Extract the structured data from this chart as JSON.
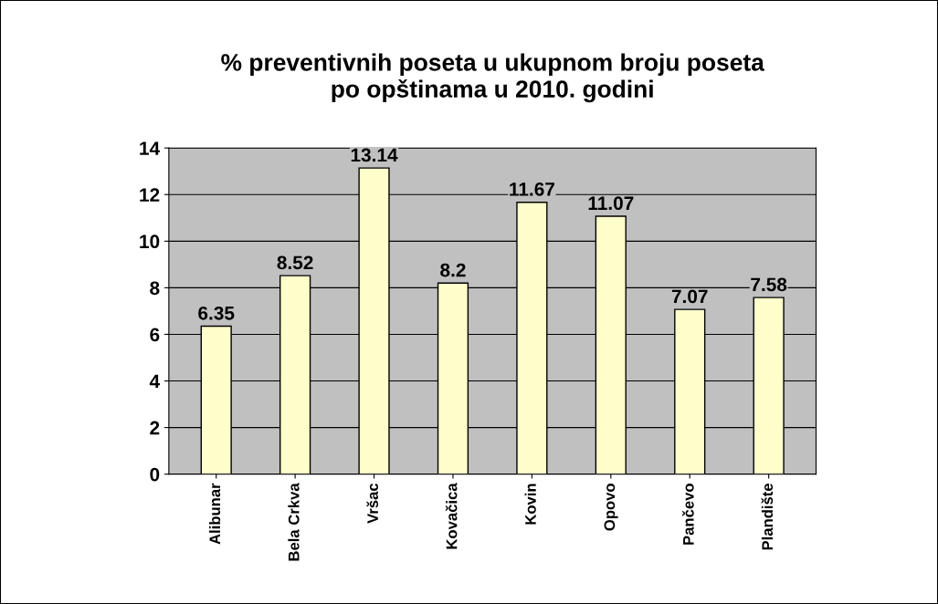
{
  "chart_data": {
    "type": "bar",
    "title": "% preventivnih poseta u ukupnom broju poseta\npo opštinama u 2010. godini",
    "categories": [
      "Alibunar",
      "Bela Crkva",
      "Vršac",
      "Kovačica",
      "Kovin",
      "Opovo",
      "Pančevo",
      "Plandište"
    ],
    "values": [
      6.35,
      8.52,
      13.14,
      8.2,
      11.67,
      11.07,
      7.07,
      7.58
    ],
    "color": "#ffffcc",
    "ylim": [
      0,
      14
    ],
    "yticks": [
      0,
      2,
      4,
      6,
      8,
      10,
      12,
      14
    ],
    "grid": "y",
    "data_labels": true
  }
}
